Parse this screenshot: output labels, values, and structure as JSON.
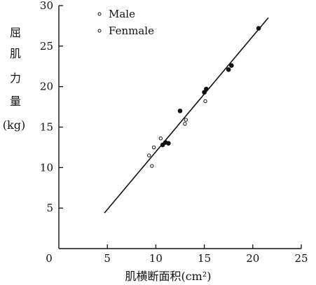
{
  "chart_data": {
    "type": "scatter",
    "title": "",
    "xlabel": "肌横断面积(cm²)",
    "ylabel_chars": [
      "屈",
      "肌",
      "力",
      "量",
      "(kg)"
    ],
    "xlim": [
      0,
      25
    ],
    "ylim": [
      0,
      30
    ],
    "x_ticks": [
      0,
      5,
      10,
      15,
      20,
      25
    ],
    "y_ticks": [
      5,
      10,
      15,
      20,
      25,
      30
    ],
    "grid": false,
    "legend_position": "top-left",
    "series": [
      {
        "name": "Male",
        "marker": "filled-dot",
        "points": [
          [
            10.7,
            12.8
          ],
          [
            11.0,
            13.1
          ],
          [
            11.3,
            13.0
          ],
          [
            12.5,
            17.0
          ],
          [
            15.0,
            19.3
          ],
          [
            15.2,
            19.7
          ],
          [
            17.5,
            22.1
          ],
          [
            17.8,
            22.6
          ],
          [
            20.6,
            27.2
          ]
        ]
      },
      {
        "name": "Fenmale",
        "marker": "open-circle",
        "points": [
          [
            9.3,
            11.5
          ],
          [
            9.6,
            10.2
          ],
          [
            9.8,
            12.5
          ],
          [
            10.5,
            13.6
          ],
          [
            13.0,
            15.4
          ],
          [
            13.1,
            15.9
          ],
          [
            15.1,
            18.2
          ]
        ]
      }
    ],
    "fit_line": {
      "x": [
        4.7,
        21.6
      ],
      "y": [
        4.4,
        28.5
      ]
    }
  }
}
